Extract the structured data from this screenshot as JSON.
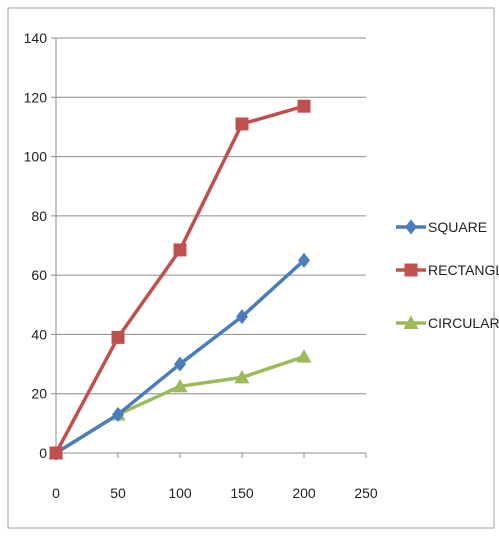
{
  "chart_data": {
    "type": "line",
    "title": "",
    "xlabel": "",
    "ylabel": "",
    "xlim": [
      0,
      250
    ],
    "ylim": [
      0,
      140
    ],
    "x_ticks": [
      0,
      50,
      100,
      150,
      200,
      250
    ],
    "y_ticks": [
      0,
      20,
      40,
      60,
      80,
      100,
      120,
      140
    ],
    "x_tick_labels": [
      "0",
      "50",
      "100",
      "150",
      "200",
      "250"
    ],
    "y_tick_labels": [
      "0",
      "20",
      "40",
      "60",
      "80",
      "100",
      "120",
      "140"
    ],
    "grid": "horizontal",
    "legend_position": "right",
    "x": [
      0,
      50,
      100,
      150,
      200
    ],
    "series": [
      {
        "name": "SQUARE",
        "values": [
          0,
          13,
          30,
          46,
          65
        ],
        "color": "#4a7ebb",
        "marker": "diamond"
      },
      {
        "name": "RECTANGLE",
        "values": [
          0,
          39,
          68.5,
          111,
          117
        ],
        "color": "#c0504d",
        "marker": "square"
      },
      {
        "name": "CIRCULAR",
        "values": [
          0,
          13,
          22.5,
          25.5,
          32.5
        ],
        "color": "#9bbb59",
        "marker": "triangle"
      }
    ]
  }
}
